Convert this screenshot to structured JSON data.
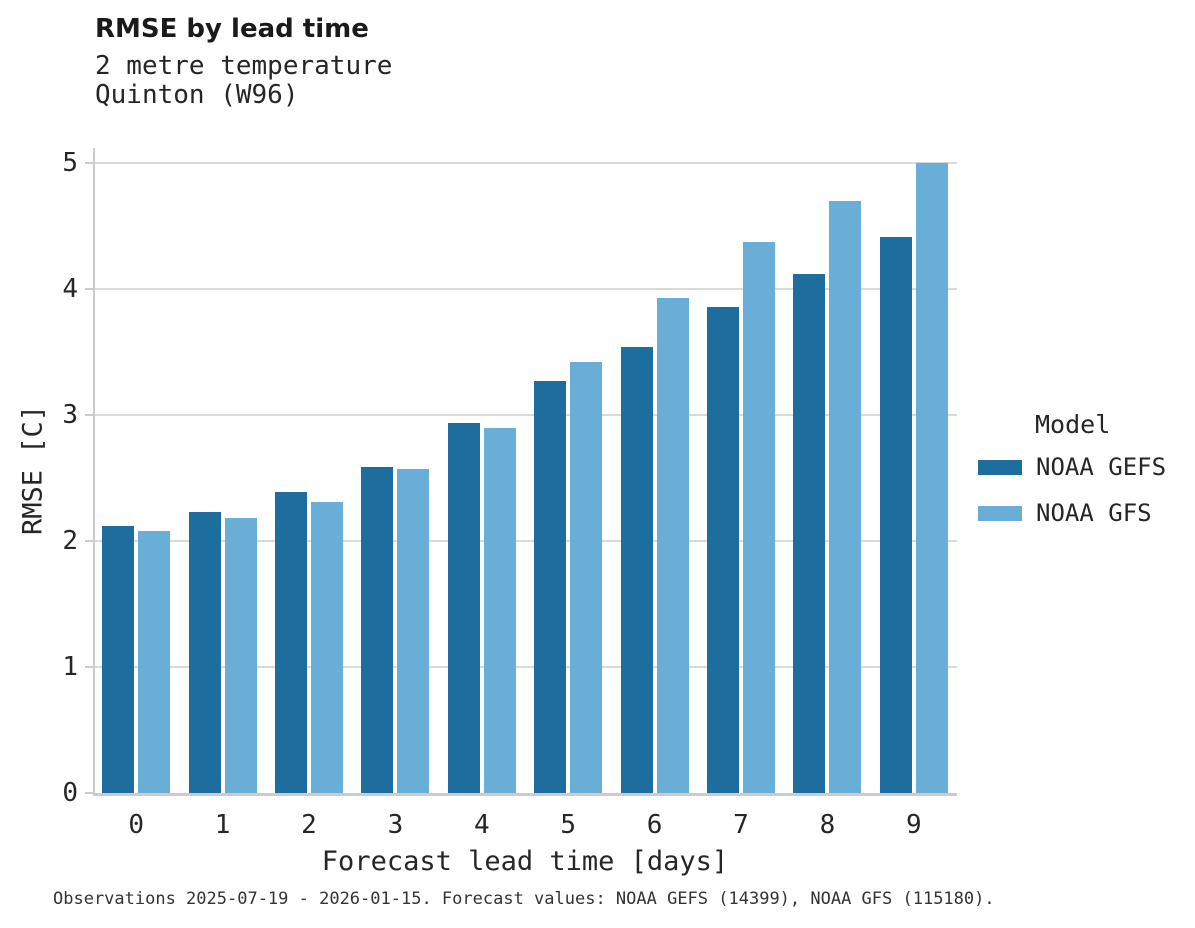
{
  "header": {
    "title": "RMSE by lead time",
    "subtitle_line1": "2 metre temperature",
    "subtitle_line2": "Quinton (W96)"
  },
  "footer": {
    "text": "Observations 2025-07-19 - 2026-01-15. Forecast values: NOAA GEFS (14399), NOAA GFS (115180)."
  },
  "legend": {
    "title": "Model",
    "items": [
      {
        "label": "NOAA GEFS",
        "color": "#1d6e9f"
      },
      {
        "label": "NOAA GFS",
        "color": "#69aed7"
      }
    ]
  },
  "chart_data": {
    "type": "bar",
    "title": "RMSE by lead time",
    "subtitle": [
      "2 metre temperature",
      "Quinton (W96)"
    ],
    "categories": [
      "0",
      "1",
      "2",
      "3",
      "4",
      "5",
      "6",
      "7",
      "8",
      "9"
    ],
    "series": [
      {
        "name": "NOAA GEFS",
        "color": "#1d6e9f",
        "values": [
          2.12,
          2.23,
          2.39,
          2.59,
          2.94,
          3.27,
          3.54,
          3.86,
          4.12,
          4.41
        ]
      },
      {
        "name": "NOAA GFS",
        "color": "#69aed7",
        "values": [
          2.08,
          2.18,
          2.31,
          2.57,
          2.9,
          3.42,
          3.93,
          4.37,
          4.7,
          5.0
        ]
      }
    ],
    "xlabel": "Forecast lead time [days]",
    "ylabel": "RMSE [C]",
    "ylim": [
      0,
      5.12
    ],
    "yticks": [
      0,
      1,
      2,
      3,
      4,
      5
    ],
    "grid": true,
    "grid_color": "#d9d9d9",
    "legend_title": "Model",
    "legend_position": "right-outside"
  },
  "style": {
    "background": "#ffffff",
    "text_color": "#262626",
    "spine_color": "#cccccc"
  }
}
